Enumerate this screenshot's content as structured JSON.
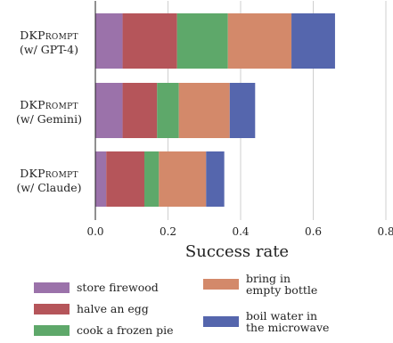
{
  "chart_data": {
    "type": "bar",
    "orientation": "horizontal",
    "stacked": true,
    "categories": [
      "DKPrompt\n(w/ GPT-4)",
      "DKPrompt\n(w/ Gemini)",
      "DKPrompt\n(w/ Claude)"
    ],
    "series": [
      {
        "name": "store firewood",
        "color": "#9b72aa",
        "values": [
          0.075,
          0.075,
          0.03
        ]
      },
      {
        "name": "halve an egg",
        "color": "#b5555a",
        "values": [
          0.15,
          0.095,
          0.105
        ]
      },
      {
        "name": "cook a frozen pie",
        "color": "#5ea86a",
        "values": [
          0.14,
          0.06,
          0.04
        ]
      },
      {
        "name": "bring in\nempty bottle",
        "color": "#d3896a",
        "values": [
          0.175,
          0.14,
          0.13
        ]
      },
      {
        "name": "boil water in\nthe microwave",
        "color": "#5566ad",
        "values": [
          0.12,
          0.07,
          0.05
        ]
      }
    ],
    "xlabel": "Success rate",
    "ylabel": "",
    "xlim": [
      0,
      0.8
    ],
    "xticks": [
      "0.0",
      "0.2",
      "0.4",
      "0.6",
      "0.8"
    ],
    "grid": true,
    "legend_position": "bottom"
  }
}
